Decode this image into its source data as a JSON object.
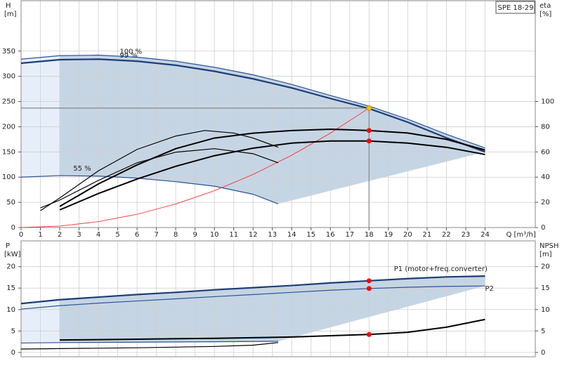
{
  "chart_data": [
    {
      "type": "line",
      "title": "SPE 18-29",
      "ylabel": "H",
      "yunit": "[m]",
      "y2label": "eta",
      "y2unit": "[%]",
      "xlabel": "Q [m³/h]",
      "xlim": [
        0,
        26.6
      ],
      "xticks": [
        0,
        1,
        2,
        3,
        4,
        5,
        6,
        7,
        8,
        9,
        10,
        11,
        12,
        13,
        14,
        15,
        16,
        17,
        18,
        19,
        20,
        21,
        22,
        23,
        24
      ],
      "ylim": [
        0,
        450
      ],
      "yticks": [
        0,
        50,
        100,
        150,
        200,
        250,
        300,
        350
      ],
      "y2lim": [
        0,
        180
      ],
      "y2ticks": [
        0,
        20,
        40,
        60,
        80,
        100
      ],
      "grid": true,
      "series": [
        {
          "name": "100 %",
          "color": "#2a5599",
          "x": [
            0,
            2,
            4,
            6,
            8,
            10,
            12,
            14,
            16,
            18,
            20,
            22,
            24
          ],
          "values": [
            334,
            341,
            342,
            338,
            330,
            318,
            303,
            284,
            262,
            241,
            215,
            185,
            158
          ]
        },
        {
          "name": "99 %",
          "color": "#1d3d78",
          "x": [
            0,
            2,
            4,
            6,
            8,
            10,
            12,
            14,
            16,
            18,
            20,
            22,
            24
          ],
          "values": [
            326,
            333,
            334,
            330,
            322,
            310,
            295,
            277,
            256,
            236,
            209,
            178,
            150
          ]
        },
        {
          "name": "55 %",
          "color": "#2a5599",
          "x": [
            0,
            2,
            4,
            6,
            8,
            10,
            12,
            13.3
          ],
          "values": [
            100,
            103,
            102,
            98,
            91,
            82,
            66,
            47
          ]
        },
        {
          "color": "#ff3333",
          "x": [
            0,
            2,
            4,
            6,
            8,
            10,
            12,
            14,
            16,
            18
          ],
          "values": [
            0,
            2.9,
            11.7,
            26.3,
            46.8,
            73.1,
            105.3,
            143.4,
            187.3,
            237
          ]
        },
        {
          "color": "#000000",
          "axis": "y2",
          "x": [
            2,
            4,
            6,
            8,
            10,
            12,
            14,
            16,
            18,
            20,
            22,
            24
          ],
          "values": [
            16.8,
            34.6,
            49.7,
            62.6,
            71,
            74.9,
            77,
            78,
            77,
            75,
            70,
            61.5
          ]
        },
        {
          "color": "#000000",
          "axis": "y2",
          "x": [
            2,
            4,
            6,
            8,
            10,
            12,
            14,
            16,
            18,
            20,
            22,
            24
          ],
          "values": [
            14,
            27,
            38.5,
            48.6,
            57,
            63,
            67,
            68.7,
            68.7,
            67,
            63.7,
            58
          ]
        },
        {
          "color": "#000000",
          "axis": "y2",
          "x": [
            1,
            2,
            4,
            6,
            8,
            9.5,
            11,
            12,
            13.3
          ],
          "values": [
            13.4,
            23.5,
            45,
            62,
            72.6,
            77,
            75,
            71,
            63.7
          ]
        },
        {
          "color": "#000000",
          "axis": "y2",
          "x": [
            1,
            2,
            4,
            6,
            8,
            10,
            12,
            13.3
          ],
          "values": [
            15.6,
            21.8,
            37.4,
            51.4,
            59.8,
            62.6,
            58.6,
            51.4
          ]
        }
      ],
      "markers": [
        {
          "x": 18,
          "y": 237,
          "color": "#f5c400"
        },
        {
          "x": 18,
          "y": 77,
          "axis": "y2",
          "color": "#ff0000"
        },
        {
          "x": 18,
          "y": 68.7,
          "axis": "y2",
          "color": "#ff0000"
        }
      ]
    },
    {
      "type": "line",
      "ylabel": "P",
      "yunit": "[kW]",
      "y2label": "NPSH",
      "y2unit": "[m]",
      "xlim": [
        0,
        26.6
      ],
      "ylim": [
        -1,
        26
      ],
      "yticks": [
        0,
        5,
        10,
        15,
        20
      ],
      "y2lim": [
        -1,
        26
      ],
      "y2ticks": [
        0,
        5,
        10,
        15,
        20
      ],
      "grid": true,
      "series": [
        {
          "name": "P1 (motor+freq.converter)",
          "color": "#1d3d78",
          "x": [
            0,
            2,
            4,
            6,
            8,
            10,
            12,
            14,
            16,
            18,
            20,
            22,
            24
          ],
          "values": [
            11.4,
            12.3,
            12.9,
            13.5,
            14,
            14.6,
            15.1,
            15.6,
            16.2,
            16.7,
            17.2,
            17.6,
            17.8
          ]
        },
        {
          "name": "P2",
          "color": "#2a5599",
          "x": [
            0,
            2,
            4,
            6,
            8,
            10,
            12,
            14,
            16,
            18,
            20,
            22,
            24
          ],
          "values": [
            10.1,
            10.9,
            11.5,
            12,
            12.5,
            13,
            13.5,
            14,
            14.5,
            14.9,
            15.2,
            15.4,
            15.5
          ]
        },
        {
          "color": "#2a5599",
          "x": [
            0,
            2,
            6,
            10,
            13.3
          ],
          "values": [
            2.2,
            2.3,
            2.4,
            2.5,
            2.6
          ]
        },
        {
          "color": "#000000",
          "axis": "y2",
          "x": [
            2,
            6,
            10,
            14,
            18,
            20,
            22,
            24
          ],
          "values": [
            2.9,
            3.1,
            3.3,
            3.6,
            4.2,
            4.7,
            5.9,
            7.7
          ]
        },
        {
          "color": "#000000",
          "axis": "y2",
          "x": [
            0,
            2,
            6,
            10,
            12,
            13.3
          ],
          "values": [
            0.8,
            0.9,
            1.1,
            1.4,
            1.7,
            2.3
          ]
        }
      ],
      "markers": [
        {
          "x": 18,
          "y": 16.7,
          "color": "#ff0000"
        },
        {
          "x": 18,
          "y": 14.9,
          "color": "#ff0000"
        },
        {
          "x": 18,
          "y": 4.2,
          "axis": "y2",
          "color": "#ff0000"
        }
      ]
    }
  ]
}
